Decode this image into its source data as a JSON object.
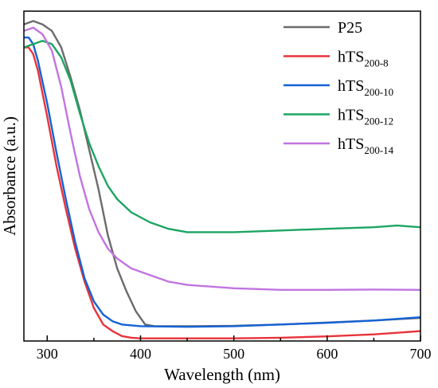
{
  "chart_data": {
    "type": "line",
    "xlabel": "Wavelength (nm)",
    "ylabel": "Absorbance (a.u.)",
    "xlim": [
      275,
      700
    ],
    "ylim": [
      0,
      1
    ],
    "x_ticks": [
      300,
      400,
      500,
      600,
      700
    ],
    "y_tick_labels": "none",
    "grid": false,
    "legend_position": "top-right",
    "series": [
      {
        "name": "P25",
        "name_main": "P25",
        "name_sub": "",
        "color": "#6b6b6b",
        "points": [
          [
            275,
            0.96
          ],
          [
            285,
            0.97
          ],
          [
            295,
            0.96
          ],
          [
            305,
            0.94
          ],
          [
            315,
            0.89
          ],
          [
            325,
            0.8
          ],
          [
            335,
            0.7
          ],
          [
            345,
            0.58
          ],
          [
            355,
            0.46
          ],
          [
            365,
            0.32
          ],
          [
            375,
            0.22
          ],
          [
            385,
            0.15
          ],
          [
            395,
            0.09
          ],
          [
            405,
            0.05
          ],
          [
            415,
            0.045
          ],
          [
            450,
            0.045
          ],
          [
            500,
            0.046
          ],
          [
            550,
            0.05
          ],
          [
            600,
            0.056
          ],
          [
            650,
            0.062
          ],
          [
            700,
            0.07
          ]
        ]
      },
      {
        "name": "hTS200-8",
        "name_main": "hTS",
        "name_sub": "200-8",
        "color": "#e8333a",
        "points": [
          [
            275,
            0.89
          ],
          [
            280,
            0.89
          ],
          [
            285,
            0.87
          ],
          [
            290,
            0.82
          ],
          [
            300,
            0.68
          ],
          [
            310,
            0.53
          ],
          [
            320,
            0.4
          ],
          [
            330,
            0.28
          ],
          [
            340,
            0.18
          ],
          [
            350,
            0.1
          ],
          [
            360,
            0.05
          ],
          [
            370,
            0.03
          ],
          [
            380,
            0.015
          ],
          [
            390,
            0.01
          ],
          [
            400,
            0.008
          ],
          [
            450,
            0.008
          ],
          [
            500,
            0.008
          ],
          [
            550,
            0.01
          ],
          [
            600,
            0.014
          ],
          [
            650,
            0.02
          ],
          [
            700,
            0.03
          ]
        ]
      },
      {
        "name": "hTS200-10",
        "name_main": "hTS",
        "name_sub": "200-10",
        "color": "#1462d6",
        "points": [
          [
            275,
            0.92
          ],
          [
            280,
            0.92
          ],
          [
            285,
            0.9
          ],
          [
            290,
            0.85
          ],
          [
            300,
            0.72
          ],
          [
            310,
            0.57
          ],
          [
            320,
            0.43
          ],
          [
            330,
            0.3
          ],
          [
            340,
            0.19
          ],
          [
            350,
            0.12
          ],
          [
            360,
            0.08
          ],
          [
            370,
            0.06
          ],
          [
            380,
            0.05
          ],
          [
            400,
            0.045
          ],
          [
            450,
            0.043
          ],
          [
            500,
            0.045
          ],
          [
            550,
            0.05
          ],
          [
            600,
            0.055
          ],
          [
            650,
            0.062
          ],
          [
            700,
            0.072
          ]
        ]
      },
      {
        "name": "hTS200-12",
        "name_main": "hTS",
        "name_sub": "200-12",
        "color": "#1ca562",
        "points": [
          [
            275,
            0.89
          ],
          [
            285,
            0.9
          ],
          [
            295,
            0.91
          ],
          [
            305,
            0.9
          ],
          [
            315,
            0.86
          ],
          [
            325,
            0.79
          ],
          [
            335,
            0.69
          ],
          [
            345,
            0.6
          ],
          [
            355,
            0.53
          ],
          [
            365,
            0.47
          ],
          [
            375,
            0.43
          ],
          [
            390,
            0.39
          ],
          [
            410,
            0.36
          ],
          [
            430,
            0.34
          ],
          [
            450,
            0.33
          ],
          [
            500,
            0.33
          ],
          [
            550,
            0.335
          ],
          [
            600,
            0.34
          ],
          [
            650,
            0.345
          ],
          [
            675,
            0.35
          ],
          [
            700,
            0.345
          ]
        ]
      },
      {
        "name": "hTS200-14",
        "name_main": "hTS",
        "name_sub": "200-14",
        "color": "#c174e0",
        "points": [
          [
            275,
            0.94
          ],
          [
            285,
            0.95
          ],
          [
            295,
            0.93
          ],
          [
            305,
            0.88
          ],
          [
            315,
            0.77
          ],
          [
            325,
            0.63
          ],
          [
            335,
            0.5
          ],
          [
            345,
            0.4
          ],
          [
            355,
            0.33
          ],
          [
            365,
            0.28
          ],
          [
            375,
            0.25
          ],
          [
            390,
            0.22
          ],
          [
            410,
            0.2
          ],
          [
            430,
            0.18
          ],
          [
            450,
            0.17
          ],
          [
            500,
            0.16
          ],
          [
            550,
            0.155
          ],
          [
            600,
            0.155
          ],
          [
            650,
            0.156
          ],
          [
            700,
            0.155
          ]
        ]
      }
    ]
  }
}
